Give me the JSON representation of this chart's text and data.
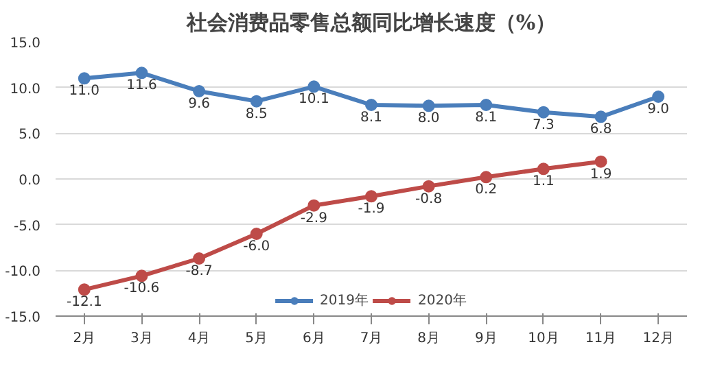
{
  "chart_data": {
    "type": "line",
    "title": "社会消费品零售总额同比增长速度（%）",
    "categories": [
      "2月",
      "3月",
      "4月",
      "5月",
      "6月",
      "7月",
      "8月",
      "9月",
      "10月",
      "11月",
      "12月"
    ],
    "series": [
      {
        "name": "2019年",
        "color": "#4a7ebb",
        "values": [
          11.0,
          11.6,
          9.6,
          8.5,
          10.1,
          8.1,
          8.0,
          8.1,
          7.3,
          6.8,
          9.0
        ],
        "value_labels": [
          "11.0",
          "11.6",
          "9.6",
          "8.5",
          "10.1",
          "8.1",
          "8.0",
          "8.1",
          "7.3",
          "6.8",
          "9.0"
        ]
      },
      {
        "name": "2020年",
        "color": "#be4b48",
        "values": [
          -12.1,
          -10.6,
          -8.7,
          -6.0,
          -2.9,
          -1.9,
          -0.8,
          0.2,
          1.1,
          1.9,
          null
        ],
        "value_labels": [
          "-12.1",
          "-10.6",
          "-8.7",
          "-6.0",
          "-2.9",
          "-1.9",
          "-0.8",
          "0.2",
          "1.1",
          "1.9",
          null
        ]
      }
    ],
    "ylim": [
      -15,
      15
    ],
    "yticks": [
      {
        "value": -15,
        "label": "-15.0"
      },
      {
        "value": -10,
        "label": "-10.0"
      },
      {
        "value": -5,
        "label": "-5.0"
      },
      {
        "value": 0,
        "label": "0.0"
      },
      {
        "value": 5,
        "label": "5.0"
      },
      {
        "value": 10,
        "label": "10.0"
      },
      {
        "value": 15,
        "label": "15.0"
      }
    ],
    "grid": "y",
    "legend": "bottom",
    "marker": "circle",
    "line_style": "solid"
  }
}
